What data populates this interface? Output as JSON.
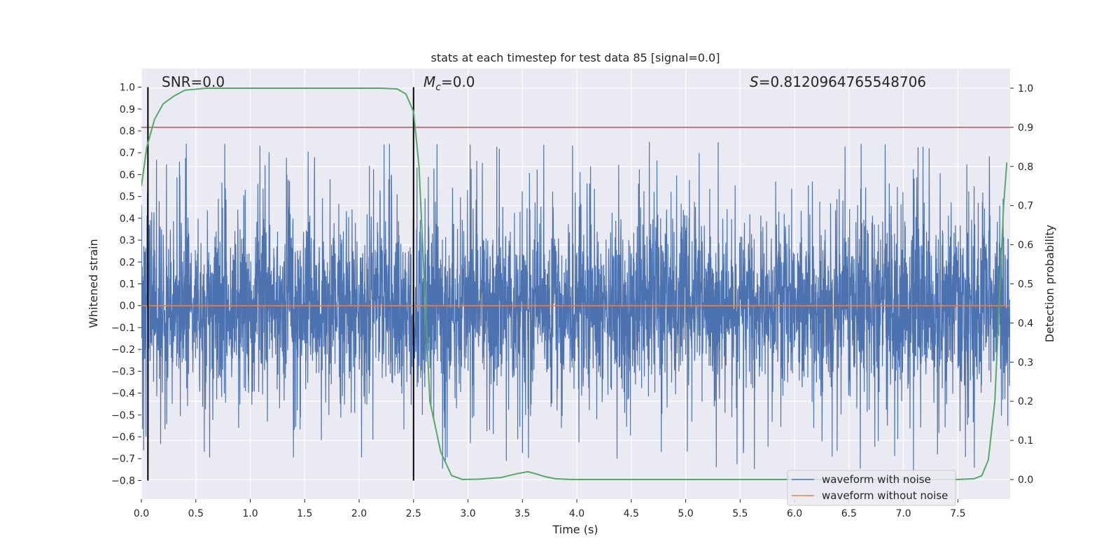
{
  "chart_data": {
    "type": "line",
    "title": "stats at each timestep for test data 85 [signal=0.0]",
    "xlabel": "Time (s)",
    "ylabel": "Whitened strain",
    "y2label": "Detection probability",
    "xlim": [
      0.0,
      7.98
    ],
    "ylim": [
      -0.885,
      1.085
    ],
    "y2lim": [
      -0.05,
      1.05
    ],
    "xticks": [
      "0.0",
      "0.5",
      "1.0",
      "1.5",
      "2.0",
      "2.5",
      "3.0",
      "3.5",
      "4.0",
      "4.5",
      "5.0",
      "5.5",
      "6.0",
      "6.5",
      "7.0",
      "7.5"
    ],
    "yticks": [
      "1.0",
      "0.9",
      "0.8",
      "0.7",
      "0.6",
      "0.5",
      "0.4",
      "0.3",
      "0.2",
      "0.1",
      "0.0",
      "−0.1",
      "−0.2",
      "−0.3",
      "−0.4",
      "−0.5",
      "−0.6",
      "−0.7",
      "−0.8"
    ],
    "y2ticks": [
      "1.0",
      "0.9",
      "0.8",
      "0.7",
      "0.6",
      "0.5",
      "0.4",
      "0.3",
      "0.2",
      "0.1",
      "0.0"
    ],
    "grid": true,
    "background": "#eaeaf2",
    "annotations": {
      "snr": "SNR=0.0",
      "mc_symbol": "M",
      "mc_sub": "c",
      "mc_value": "=0.0",
      "s_symbol": "S",
      "s_value": "=0.8120964765548706"
    },
    "legend": {
      "position": "lower right",
      "entries": [
        "waveform with noise",
        "waveform without noise"
      ]
    },
    "threshold": {
      "axis": "right",
      "value": 0.9,
      "color": "#c44e52"
    },
    "vlines": [
      0.06,
      2.5
    ],
    "vline_range": [
      -0.8,
      1.0
    ],
    "series": [
      {
        "name": "waveform with noise",
        "axis": "left",
        "color": "#4c72b0",
        "description": "dense noise, roughly -0.8 to 1.0",
        "noise_amplitude": 0.62
      },
      {
        "name": "waveform without noise",
        "axis": "left",
        "color": "#dd8452",
        "x": [
          0.0,
          7.98
        ],
        "y": [
          0.0,
          0.0
        ]
      },
      {
        "axis": "right",
        "color": "#55a868",
        "x": [
          0.0,
          0.05,
          0.1,
          0.12,
          0.2,
          0.3,
          0.4,
          0.6,
          1.0,
          1.5,
          2.0,
          2.2,
          2.35,
          2.43,
          2.5,
          2.55,
          2.6,
          2.65,
          2.75,
          2.85,
          2.95,
          3.1,
          3.3,
          3.45,
          3.55,
          3.62,
          3.7,
          3.8,
          3.95,
          4.5,
          5.0,
          6.0,
          7.0,
          7.5,
          7.65,
          7.72,
          7.78,
          7.84,
          7.88,
          7.92,
          7.95
        ],
        "y": [
          0.75,
          0.85,
          0.9,
          0.92,
          0.96,
          0.98,
          0.995,
          1.0,
          1.0,
          1.0,
          1.0,
          1.0,
          0.998,
          0.985,
          0.94,
          0.8,
          0.5,
          0.2,
          0.07,
          0.01,
          0.0,
          0.001,
          0.005,
          0.015,
          0.02,
          0.015,
          0.008,
          0.002,
          0.0,
          0.0,
          0.0,
          0.0,
          0.0,
          0.0,
          0.002,
          0.01,
          0.05,
          0.2,
          0.45,
          0.7,
          0.81
        ]
      }
    ]
  }
}
